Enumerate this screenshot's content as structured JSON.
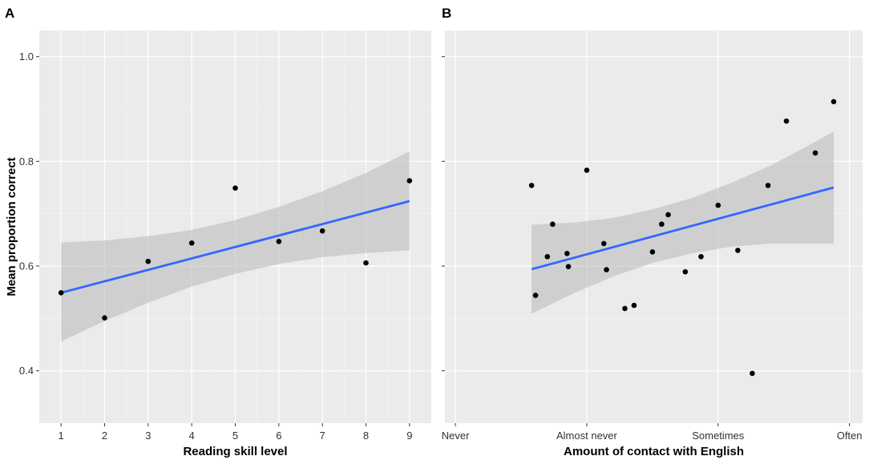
{
  "figure": {
    "ylabel": "Mean proportion correct",
    "colors": {
      "panel_bg": "#EBEBEB",
      "grid_major": "#FFFFFF",
      "grid_minor": "#F5F5F5",
      "ribbon": "#BDBDBD",
      "line": "#3366FF",
      "point": "#000000",
      "tick": "#333333"
    }
  },
  "chart_data": [
    {
      "panel": "A",
      "type": "scatter",
      "xlabel": "Reading skill level",
      "ylabel": "Mean proportion correct",
      "xlim": [
        0.5,
        9.5
      ],
      "ylim": [
        0.3,
        1.05
      ],
      "x_ticks": [
        1,
        2,
        3,
        4,
        5,
        6,
        7,
        8,
        9
      ],
      "x_tick_labels": [
        "1",
        "2",
        "3",
        "4",
        "5",
        "6",
        "7",
        "8",
        "9"
      ],
      "y_ticks": [
        0.4,
        0.6,
        0.8,
        1.0
      ],
      "y_tick_labels": [
        "0.4",
        "0.6",
        "0.8",
        "1.0"
      ],
      "points": [
        {
          "x": 1,
          "y": 0.549
        },
        {
          "x": 2,
          "y": 0.501
        },
        {
          "x": 3,
          "y": 0.609
        },
        {
          "x": 4,
          "y": 0.644
        },
        {
          "x": 5,
          "y": 0.749
        },
        {
          "x": 6,
          "y": 0.647
        },
        {
          "x": 7,
          "y": 0.667
        },
        {
          "x": 8,
          "y": 0.606
        },
        {
          "x": 9,
          "y": 0.763
        }
      ],
      "fit": {
        "x": [
          1,
          9
        ],
        "y": [
          0.549,
          0.724
        ],
        "ribbon_x": [
          1,
          2,
          3,
          4,
          5,
          6,
          7,
          8,
          9
        ],
        "ribbon_upper": [
          0.645,
          0.649,
          0.657,
          0.669,
          0.688,
          0.713,
          0.743,
          0.778,
          0.819
        ],
        "ribbon_lower": [
          0.456,
          0.495,
          0.53,
          0.561,
          0.585,
          0.604,
          0.617,
          0.625,
          0.63
        ]
      }
    },
    {
      "panel": "B",
      "type": "scatter",
      "xlabel": "Amount of contact with English",
      "ylabel": "Mean proportion correct",
      "xlim": [
        -0.08,
        3.1
      ],
      "ylim": [
        0.3,
        1.05
      ],
      "x_ticks": [
        0,
        1,
        2,
        3
      ],
      "x_tick_labels": [
        "Never",
        "Almost never",
        "Sometimes",
        "Often"
      ],
      "y_ticks": [
        0.4,
        0.6,
        0.8,
        1.0
      ],
      "y_tick_labels": [
        "",
        "",
        "",
        ""
      ],
      "points": [
        {
          "x": 0.58,
          "y": 0.754
        },
        {
          "x": 0.61,
          "y": 0.544
        },
        {
          "x": 0.7,
          "y": 0.618
        },
        {
          "x": 0.74,
          "y": 0.68
        },
        {
          "x": 0.85,
          "y": 0.624
        },
        {
          "x": 0.86,
          "y": 0.599
        },
        {
          "x": 1.0,
          "y": 0.783
        },
        {
          "x": 1.13,
          "y": 0.643
        },
        {
          "x": 1.15,
          "y": 0.593
        },
        {
          "x": 1.29,
          "y": 0.519
        },
        {
          "x": 1.36,
          "y": 0.525
        },
        {
          "x": 1.5,
          "y": 0.627
        },
        {
          "x": 1.57,
          "y": 0.68
        },
        {
          "x": 1.62,
          "y": 0.698
        },
        {
          "x": 1.75,
          "y": 0.589
        },
        {
          "x": 1.87,
          "y": 0.618
        },
        {
          "x": 2.0,
          "y": 0.716
        },
        {
          "x": 2.15,
          "y": 0.63
        },
        {
          "x": 2.26,
          "y": 0.395
        },
        {
          "x": 2.38,
          "y": 0.754
        },
        {
          "x": 2.52,
          "y": 0.877
        },
        {
          "x": 2.74,
          "y": 0.816
        },
        {
          "x": 2.88,
          "y": 0.914
        }
      ],
      "fit": {
        "x": [
          0.58,
          2.88
        ],
        "y": [
          0.594,
          0.75
        ],
        "ribbon_x": [
          0.58,
          0.9,
          1.2,
          1.5,
          1.8,
          2.1,
          2.4,
          2.7,
          2.88
        ],
        "ribbon_upper": [
          0.679,
          0.683,
          0.692,
          0.708,
          0.73,
          0.759,
          0.792,
          0.832,
          0.857
        ],
        "ribbon_lower": [
          0.509,
          0.548,
          0.58,
          0.606,
          0.624,
          0.637,
          0.643,
          0.643,
          0.643
        ]
      }
    }
  ]
}
